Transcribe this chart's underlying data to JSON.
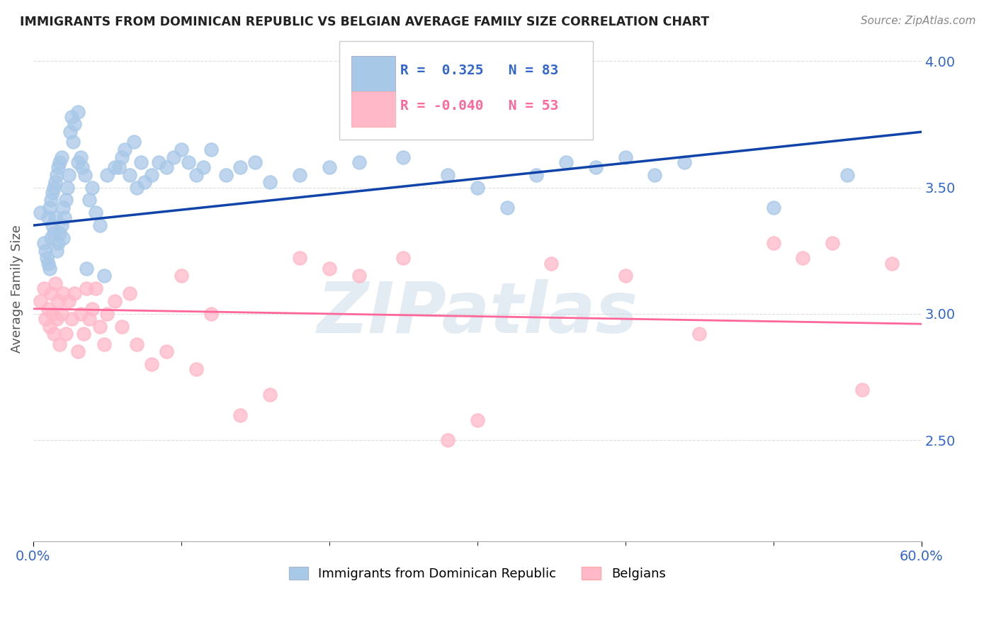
{
  "title": "IMMIGRANTS FROM DOMINICAN REPUBLIC VS BELGIAN AVERAGE FAMILY SIZE CORRELATION CHART",
  "source": "Source: ZipAtlas.com",
  "ylabel": "Average Family Size",
  "yticks": [
    2.5,
    3.0,
    3.5,
    4.0
  ],
  "xlim": [
    0.0,
    0.6
  ],
  "ylim": [
    2.1,
    4.1
  ],
  "blue_r": "0.325",
  "blue_n": "83",
  "pink_r": "-0.040",
  "pink_n": "53",
  "legend1_label": "Immigrants from Dominican Republic",
  "legend2_label": "Belgians",
  "blue_scatter_x": [
    0.005,
    0.007,
    0.008,
    0.009,
    0.01,
    0.01,
    0.011,
    0.011,
    0.012,
    0.012,
    0.013,
    0.013,
    0.014,
    0.014,
    0.015,
    0.015,
    0.016,
    0.016,
    0.017,
    0.017,
    0.018,
    0.018,
    0.019,
    0.019,
    0.02,
    0.02,
    0.021,
    0.022,
    0.023,
    0.024,
    0.025,
    0.026,
    0.027,
    0.028,
    0.03,
    0.03,
    0.032,
    0.033,
    0.035,
    0.036,
    0.038,
    0.04,
    0.042,
    0.045,
    0.048,
    0.05,
    0.055,
    0.058,
    0.06,
    0.062,
    0.065,
    0.068,
    0.07,
    0.073,
    0.075,
    0.08,
    0.085,
    0.09,
    0.095,
    0.1,
    0.105,
    0.11,
    0.115,
    0.12,
    0.13,
    0.14,
    0.15,
    0.16,
    0.18,
    0.2,
    0.22,
    0.25,
    0.28,
    0.3,
    0.32,
    0.34,
    0.36,
    0.38,
    0.4,
    0.42,
    0.44,
    0.5,
    0.55
  ],
  "blue_scatter_y": [
    3.4,
    3.28,
    3.25,
    3.22,
    3.2,
    3.38,
    3.18,
    3.42,
    3.3,
    3.45,
    3.35,
    3.48,
    3.32,
    3.5,
    3.38,
    3.52,
    3.25,
    3.55,
    3.28,
    3.58,
    3.32,
    3.6,
    3.35,
    3.62,
    3.3,
    3.42,
    3.38,
    3.45,
    3.5,
    3.55,
    3.72,
    3.78,
    3.68,
    3.75,
    3.6,
    3.8,
    3.62,
    3.58,
    3.55,
    3.18,
    3.45,
    3.5,
    3.4,
    3.35,
    3.15,
    3.55,
    3.58,
    3.58,
    3.62,
    3.65,
    3.55,
    3.68,
    3.5,
    3.6,
    3.52,
    3.55,
    3.6,
    3.58,
    3.62,
    3.65,
    3.6,
    3.55,
    3.58,
    3.65,
    3.55,
    3.58,
    3.6,
    3.52,
    3.55,
    3.58,
    3.6,
    3.62,
    3.55,
    3.5,
    3.42,
    3.55,
    3.6,
    3.58,
    3.62,
    3.55,
    3.6,
    3.42,
    3.55
  ],
  "pink_scatter_x": [
    0.005,
    0.007,
    0.008,
    0.01,
    0.011,
    0.012,
    0.013,
    0.014,
    0.015,
    0.016,
    0.017,
    0.018,
    0.019,
    0.02,
    0.022,
    0.024,
    0.026,
    0.028,
    0.03,
    0.032,
    0.034,
    0.036,
    0.038,
    0.04,
    0.042,
    0.045,
    0.048,
    0.05,
    0.055,
    0.06,
    0.065,
    0.07,
    0.08,
    0.09,
    0.1,
    0.11,
    0.12,
    0.14,
    0.16,
    0.18,
    0.2,
    0.22,
    0.25,
    0.28,
    0.3,
    0.35,
    0.4,
    0.45,
    0.5,
    0.52,
    0.54,
    0.56,
    0.58
  ],
  "pink_scatter_y": [
    3.05,
    3.1,
    2.98,
    3.02,
    2.95,
    3.08,
    3.0,
    2.92,
    3.12,
    2.98,
    3.05,
    2.88,
    3.0,
    3.08,
    2.92,
    3.05,
    2.98,
    3.08,
    2.85,
    3.0,
    2.92,
    3.1,
    2.98,
    3.02,
    3.1,
    2.95,
    2.88,
    3.0,
    3.05,
    2.95,
    3.08,
    2.88,
    2.8,
    2.85,
    3.15,
    2.78,
    3.0,
    2.6,
    2.68,
    3.22,
    3.18,
    3.15,
    3.22,
    2.5,
    2.58,
    3.2,
    3.15,
    2.92,
    3.28,
    3.22,
    3.28,
    2.7,
    3.2
  ],
  "blue_line_x": [
    0.0,
    0.6
  ],
  "blue_line_y": [
    3.35,
    3.72
  ],
  "pink_line_x": [
    0.0,
    0.6
  ],
  "pink_line_y": [
    3.02,
    2.96
  ],
  "xtick_positions": [
    0.0,
    0.6
  ],
  "xtick_labels": [
    "0.0%",
    "60.0%"
  ],
  "xtick_minor_positions": [
    0.1,
    0.2,
    0.3,
    0.4,
    0.5
  ],
  "blue_color": "#A8C8E8",
  "pink_color": "#FFB8C8",
  "blue_line_color": "#1144AA",
  "pink_line_color": "#FF6699",
  "watermark_text": "ZIPatlas",
  "watermark_color": "#C8D8E8",
  "grid_color": "#DDDDDD",
  "background_color": "#FFFFFF",
  "tick_label_color": "#3366CC",
  "ylabel_color": "#555555",
  "title_color": "#222222"
}
